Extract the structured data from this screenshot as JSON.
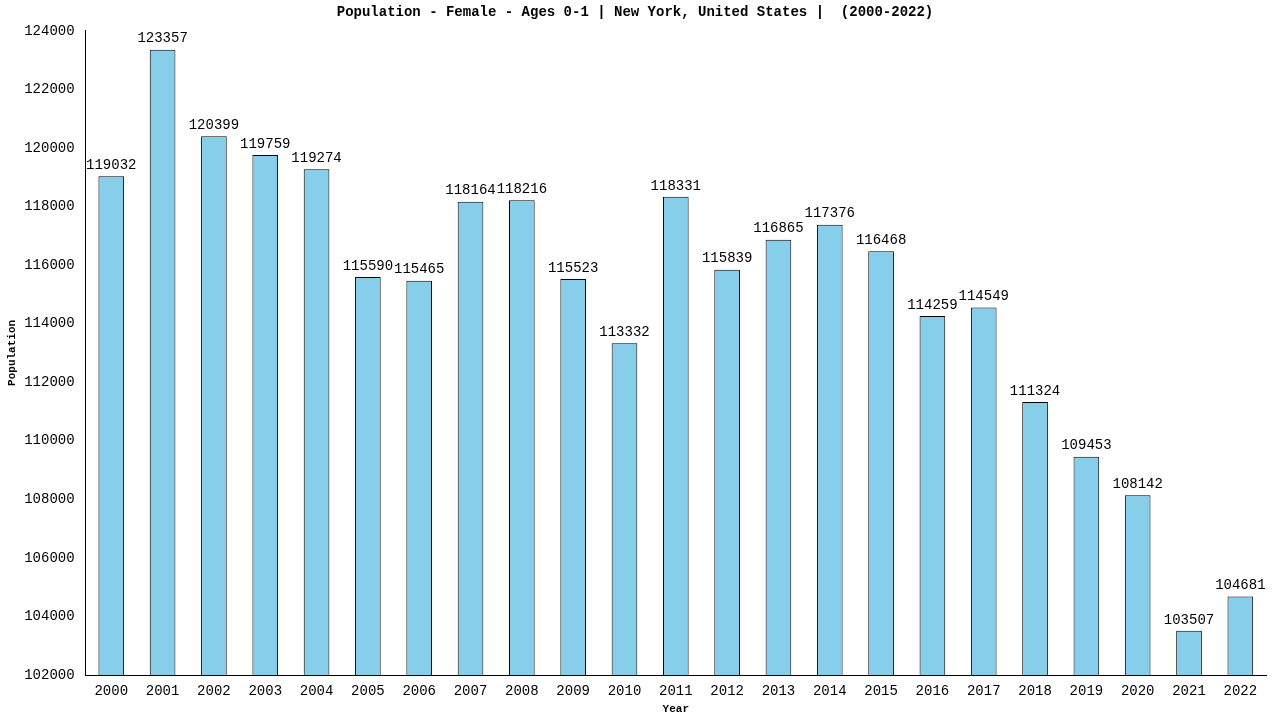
{
  "chart_data": {
    "type": "bar",
    "title": "Population - Female - Ages 0-1 | New York, United States |  (2000-2022)",
    "x_label": "Year",
    "y_label": "Population",
    "categories": [
      "2000",
      "2001",
      "2002",
      "2003",
      "2004",
      "2005",
      "2006",
      "2007",
      "2008",
      "2009",
      "2010",
      "2011",
      "2012",
      "2013",
      "2014",
      "2015",
      "2016",
      "2017",
      "2018",
      "2019",
      "2020",
      "2021",
      "2022"
    ],
    "values": [
      119032,
      123357,
      120399,
      119759,
      119274,
      115590,
      115465,
      118164,
      118216,
      115523,
      113332,
      118331,
      115839,
      116865,
      117376,
      116468,
      114259,
      114549,
      111324,
      109453,
      108142,
      103507,
      104681
    ],
    "color": "#87ceeb",
    "ylim": [
      102000,
      124000
    ],
    "yticks": [
      102000,
      104000,
      106000,
      108000,
      110000,
      112000,
      114000,
      116000,
      118000,
      120000,
      122000,
      124000
    ],
    "grid": false,
    "data_labels": true
  }
}
